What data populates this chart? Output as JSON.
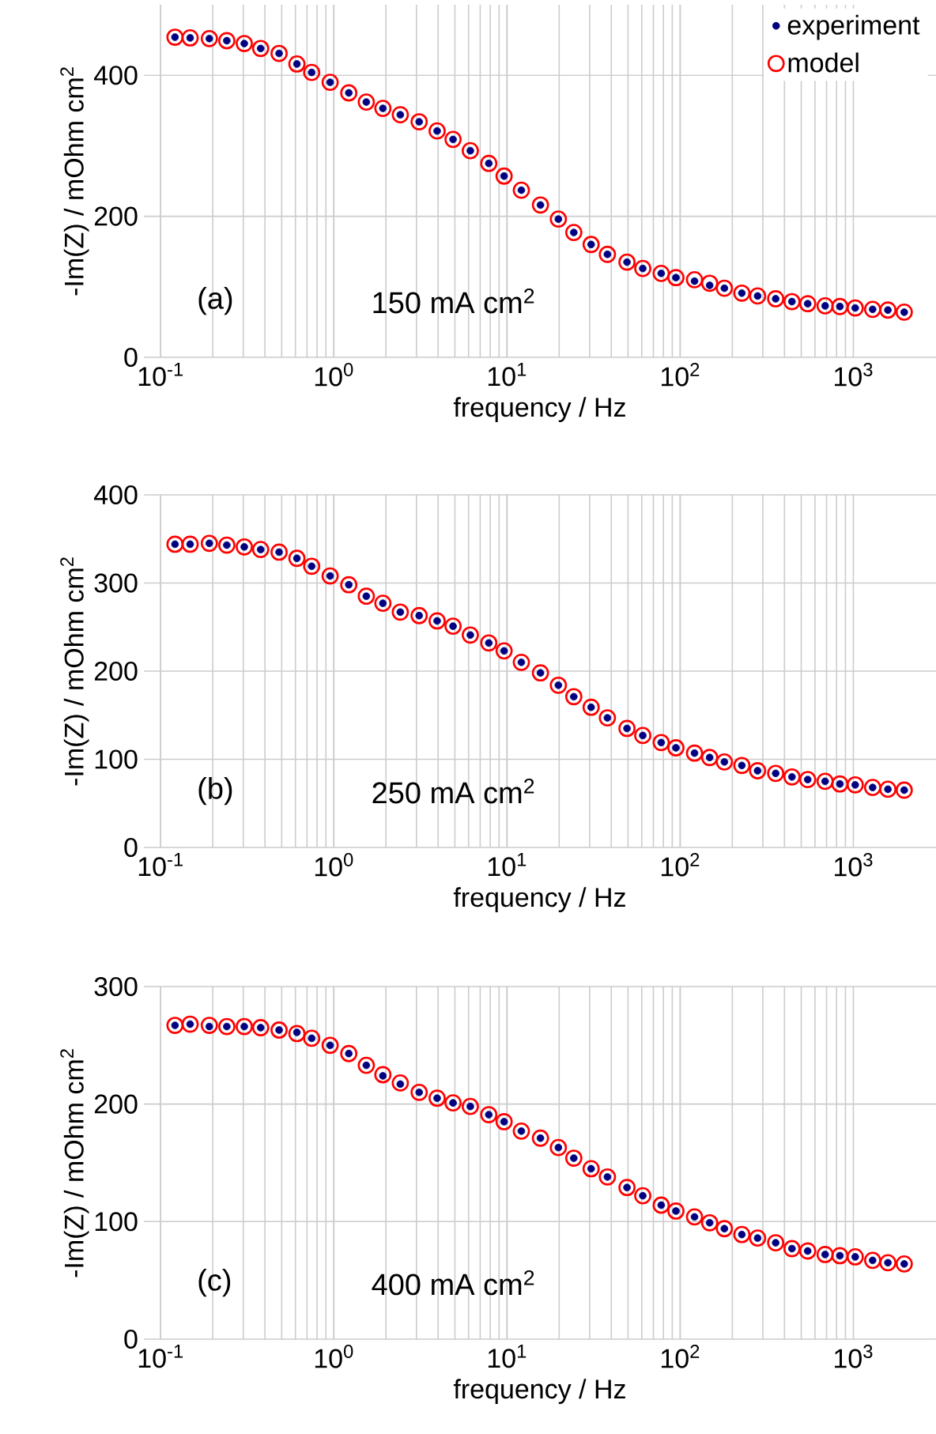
{
  "chart_data": [
    {
      "type": "scatter",
      "xlabel": "frequency / Hz",
      "ylabel": "-Im(Z) / mOhm cm$^{2}$",
      "annotations": [
        "(a)",
        "150 mA cm$^{2}$"
      ],
      "log": "x",
      "grid": true,
      "legend": "top right",
      "marker": "circle",
      "xlim": [
        0.08,
        3000
      ],
      "xticks": [
        {
          "value": 0.1,
          "label": "10$^{-1}$"
        },
        {
          "value": 1,
          "label": "10$^{0}$"
        },
        {
          "value": 10,
          "label": "10$^{1}$"
        },
        {
          "value": 100,
          "label": "10$^{2}$"
        },
        {
          "value": 1000,
          "label": "10$^{3}$"
        }
      ],
      "ylim": [
        0,
        500
      ],
      "yticks": [
        0,
        200,
        400
      ],
      "x": [
        0.121,
        0.148,
        0.191,
        0.241,
        0.304,
        0.378,
        0.483,
        0.612,
        0.745,
        0.952,
        1.22,
        1.54,
        1.92,
        2.42,
        3.11,
        3.95,
        4.88,
        6.14,
        7.85,
        9.62,
        12.1,
        15.6,
        19.8,
        24.3,
        30.6,
        38.0,
        49.3,
        60.8,
        77.7,
        94.5,
        121,
        148,
        180,
        227,
        280,
        356,
        442,
        545,
        687,
        836,
        1025,
        1292,
        1583,
        1967
      ],
      "series": [
        {
          "name": "experiment",
          "color": "#000080",
          "values": [
            454,
            453,
            452,
            449,
            445,
            438,
            431,
            416,
            404,
            390,
            375,
            362,
            353,
            344,
            334,
            321,
            309,
            293,
            275,
            257,
            237,
            216,
            196,
            177,
            160,
            146,
            135,
            126,
            119,
            113,
            108,
            102,
            98,
            91,
            87,
            83,
            79,
            76,
            73,
            72,
            70,
            68,
            67,
            64
          ]
        },
        {
          "name": "model",
          "color": "#ff0000",
          "values": [
            454,
            453,
            452,
            449,
            445,
            438,
            431,
            416,
            404,
            390,
            375,
            362,
            353,
            344,
            334,
            321,
            309,
            293,
            275,
            257,
            237,
            216,
            196,
            177,
            160,
            146,
            135,
            126,
            119,
            113,
            110,
            105,
            98,
            91,
            87,
            83,
            79,
            76,
            73,
            72,
            70,
            68,
            67,
            64
          ]
        }
      ]
    },
    {
      "type": "scatter",
      "xlabel": "frequency / Hz",
      "ylabel": "-Im(Z) / mOhm cm$^{2}$",
      "annotations": [
        "(b)",
        "250 mA cm$^{2}$"
      ],
      "log": "x",
      "grid": true,
      "marker": "circle",
      "xlim": [
        0.08,
        3000
      ],
      "xticks": [
        {
          "value": 0.1,
          "label": "10$^{-1}$"
        },
        {
          "value": 1,
          "label": "10$^{0}$"
        },
        {
          "value": 10,
          "label": "10$^{1}$"
        },
        {
          "value": 100,
          "label": "10$^{2}$"
        },
        {
          "value": 1000,
          "label": "10$^{3}$"
        }
      ],
      "ylim": [
        0,
        400
      ],
      "yticks": [
        0,
        100,
        200,
        300,
        400
      ],
      "x": [
        0.121,
        0.148,
        0.191,
        0.241,
        0.304,
        0.378,
        0.483,
        0.612,
        0.745,
        0.952,
        1.22,
        1.54,
        1.92,
        2.42,
        3.11,
        3.95,
        4.88,
        6.14,
        7.85,
        9.62,
        12.1,
        15.6,
        19.8,
        24.3,
        30.6,
        38.0,
        49.3,
        60.8,
        77.7,
        94.5,
        121,
        148,
        180,
        227,
        280,
        356,
        442,
        545,
        687,
        836,
        1025,
        1292,
        1583,
        1967
      ],
      "series": [
        {
          "color": "#000080",
          "values": [
            344,
            344,
            345,
            343,
            341,
            338,
            335,
            328,
            319,
            308,
            298,
            285,
            277,
            267,
            263,
            257,
            251,
            241,
            232,
            223,
            210,
            198,
            184,
            171,
            159,
            147,
            135,
            127,
            119,
            113,
            107,
            102,
            97,
            93,
            87,
            84,
            80,
            77,
            75,
            72,
            71,
            68,
            66,
            65
          ]
        },
        {
          "color": "#ff0000",
          "values": [
            344,
            344,
            345,
            343,
            341,
            338,
            335,
            328,
            319,
            308,
            298,
            285,
            277,
            267,
            263,
            257,
            251,
            241,
            232,
            223,
            210,
            198,
            184,
            171,
            159,
            147,
            135,
            127,
            119,
            113,
            107,
            102,
            97,
            93,
            87,
            84,
            80,
            77,
            75,
            72,
            71,
            68,
            66,
            65
          ]
        }
      ]
    },
    {
      "type": "scatter",
      "xlabel": "frequency / Hz",
      "ylabel": "-Im(Z) / mOhm cm$^{2}$",
      "annotations": [
        "(c)",
        "400 mA cm$^{2}$"
      ],
      "log": "x",
      "grid": true,
      "marker": "circle",
      "xlim": [
        0.08,
        3000
      ],
      "xticks": [
        {
          "value": 0.1,
          "label": "10$^{-1}$"
        },
        {
          "value": 1,
          "label": "10$^{0}$"
        },
        {
          "value": 10,
          "label": "10$^{1}$"
        },
        {
          "value": 100,
          "label": "10$^{2}$"
        },
        {
          "value": 1000,
          "label": "10$^{3}$"
        }
      ],
      "ylim": [
        0,
        300
      ],
      "yticks": [
        0,
        100,
        200,
        300
      ],
      "x": [
        0.121,
        0.148,
        0.191,
        0.241,
        0.304,
        0.378,
        0.483,
        0.612,
        0.745,
        0.952,
        1.22,
        1.54,
        1.92,
        2.42,
        3.11,
        3.95,
        4.88,
        6.14,
        7.85,
        9.62,
        12.1,
        15.6,
        19.8,
        24.3,
        30.6,
        38.0,
        49.3,
        60.8,
        77.7,
        94.5,
        121,
        148,
        180,
        227,
        280,
        356,
        442,
        545,
        687,
        836,
        1025,
        1292,
        1583,
        1967
      ],
      "series": [
        {
          "color": "#000080",
          "values": [
            267,
            268,
            266,
            266,
            266,
            265,
            263,
            261,
            256,
            250,
            243,
            233,
            224,
            217,
            210,
            205,
            201,
            198,
            191,
            185,
            177,
            171,
            163,
            154,
            145,
            138,
            129,
            122,
            114,
            109,
            104,
            99,
            94,
            89,
            86,
            82,
            77,
            75,
            72,
            71,
            70,
            67,
            65,
            64
          ]
        },
        {
          "color": "#ff0000",
          "values": [
            267,
            268,
            267,
            266,
            266,
            265,
            263,
            260,
            256,
            250,
            243,
            233,
            225,
            218,
            210,
            205,
            201,
            198,
            191,
            185,
            177,
            171,
            163,
            154,
            145,
            138,
            129,
            122,
            114,
            109,
            104,
            99,
            94,
            89,
            86,
            82,
            77,
            75,
            72,
            71,
            70,
            67,
            65,
            64
          ]
        }
      ]
    }
  ]
}
